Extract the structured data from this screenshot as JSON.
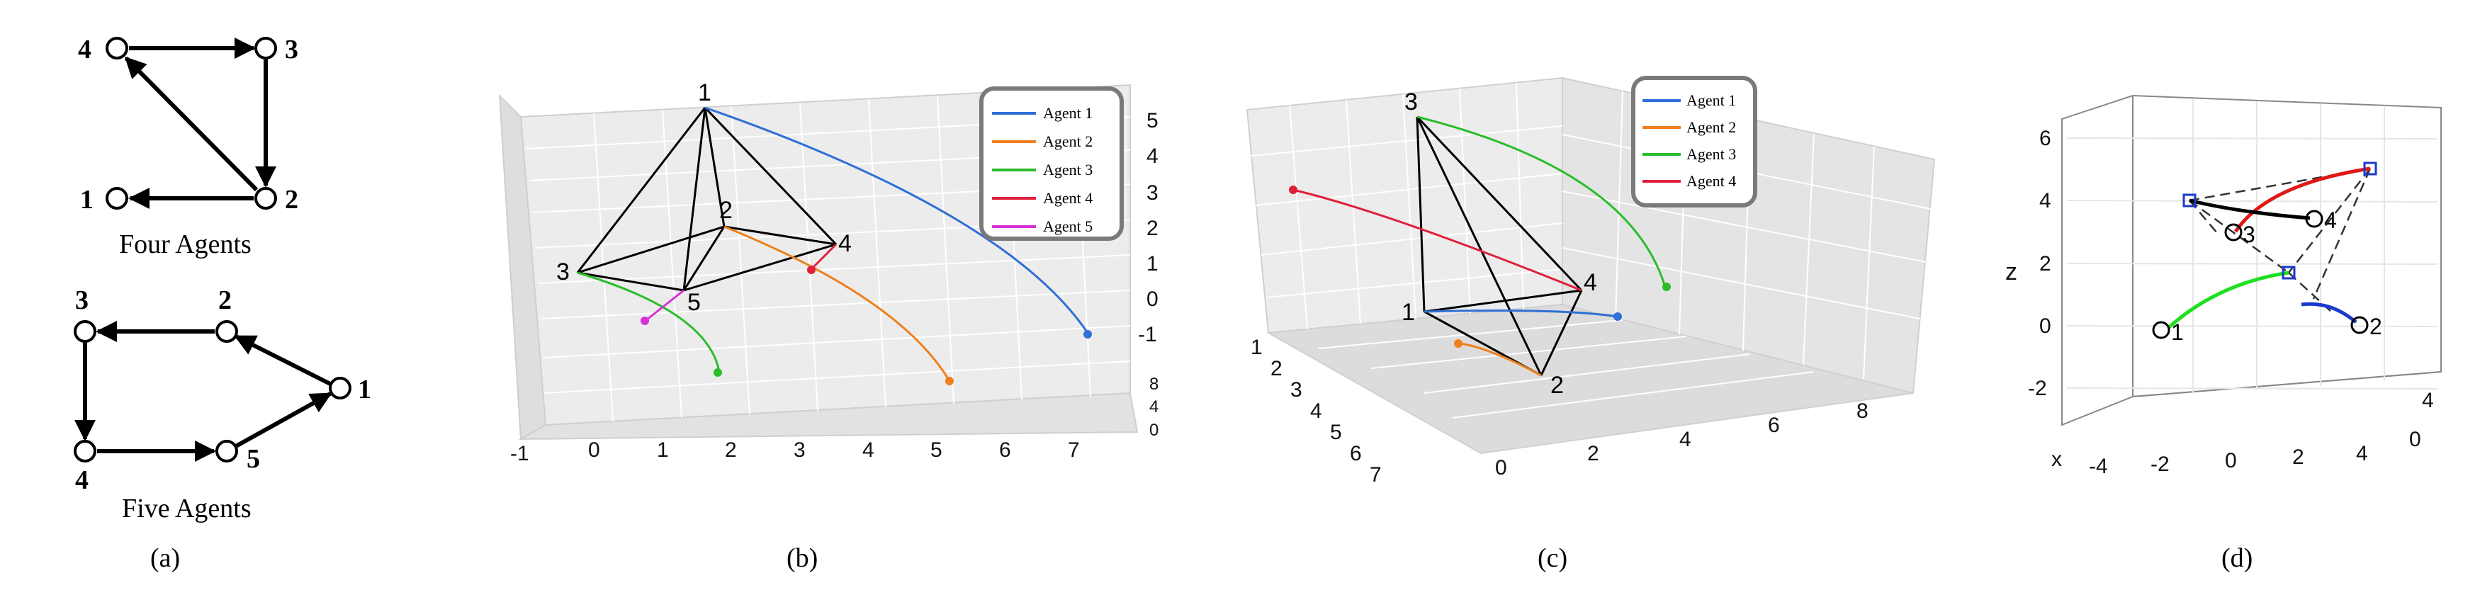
{
  "panel_a": {
    "four_agents_title": "Four Agents",
    "five_agents_title": "Five Agents",
    "caption": "(a)",
    "four_nodes": [
      "4",
      "3",
      "1",
      "2"
    ],
    "five_nodes": [
      "3",
      "2",
      "1",
      "4",
      "5"
    ]
  },
  "panel_b": {
    "caption": "(b)",
    "vertex_labels": [
      "1",
      "2",
      "3",
      "4",
      "5"
    ],
    "x_ticks": [
      "-1",
      "0",
      "1",
      "2",
      "3",
      "4",
      "5",
      "6",
      "7"
    ],
    "z_ticks": [
      "5",
      "4",
      "3",
      "2",
      "1",
      "0",
      "-1"
    ],
    "y_ticks": [
      "8",
      "4",
      "0"
    ],
    "legend": [
      "Agent 1",
      "Agent 2",
      "Agent 3",
      "Agent 4",
      "Agent 5"
    ]
  },
  "panel_c": {
    "caption": "(c)",
    "vertex_labels": [
      "1",
      "2",
      "3",
      "4"
    ],
    "y_ticks": [
      "1",
      "2",
      "3",
      "4",
      "5",
      "6",
      "7"
    ],
    "x_ticks": [
      "0",
      "2",
      "4",
      "6",
      "8"
    ],
    "legend": [
      "Agent 1",
      "Agent 2",
      "Agent 3",
      "Agent 4"
    ]
  },
  "panel_d": {
    "caption": "(d)",
    "z_label": "z",
    "x_label": "x",
    "z_ticks": [
      "6",
      "4",
      "2",
      "0",
      "-2"
    ],
    "x_ticks": [
      "-4",
      "-2",
      "0",
      "2",
      "4"
    ],
    "y_ticks": [
      "0",
      "4"
    ],
    "vertex_labels": [
      "1",
      "2",
      "3",
      "4"
    ]
  },
  "colors": {
    "agent1": "#2f6fd6",
    "agent2": "#f07f1c",
    "agent3": "#2bbd2b",
    "agent4": "#e0203a",
    "agent5": "#d631d6",
    "legend_border": "#7a7a7a"
  }
}
